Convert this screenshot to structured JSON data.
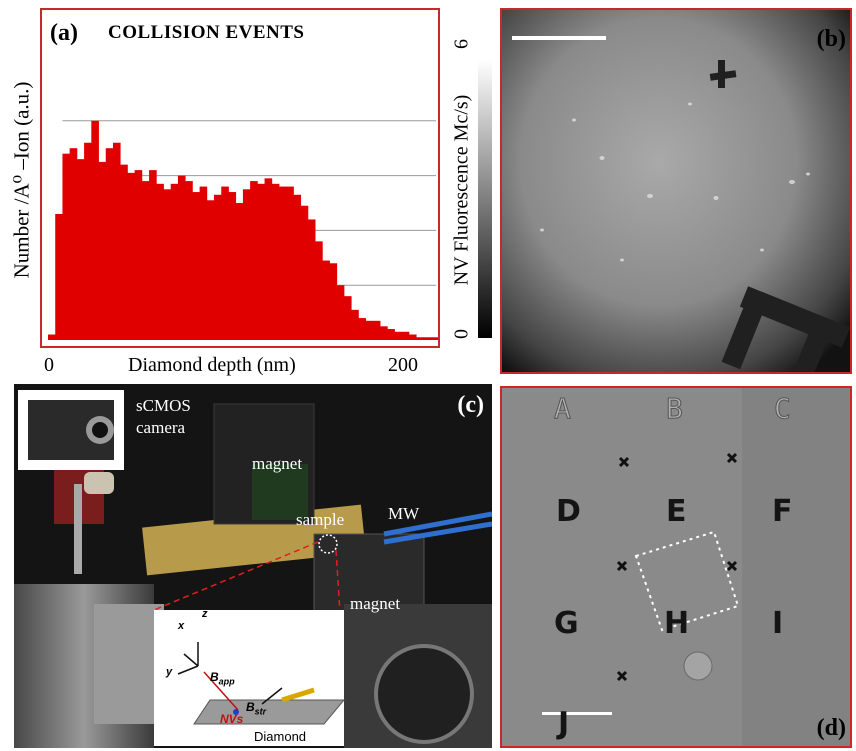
{
  "panel_a": {
    "label": "(a)",
    "title": "COLLISION EVENTS",
    "ylabel": "Number /A⁰ –Ion (a.u.)",
    "xlabel": "Diamond depth (nm)",
    "colorbar_label": "NV Fluorescence Mc/s)",
    "colorbar_ticks": [
      "6",
      "0"
    ]
  },
  "panel_b": {
    "label": "(b)"
  },
  "panel_c": {
    "label": "(c)",
    "camera_label_1": "sCMOS",
    "camera_label_2": "camera",
    "magnet_top": "magnet",
    "sample": "sample",
    "mw": "MW",
    "magnet_bottom": "magnet",
    "inset": {
      "x": "x",
      "y": "y",
      "z": "z",
      "b_app": "B",
      "b_app_sub": "app",
      "b_str": "B",
      "b_str_sub": "str",
      "nvs": "NVs",
      "diamond": "Diamond"
    }
  },
  "panel_d": {
    "label": "(d)",
    "letters": [
      "A",
      "B",
      "C",
      "D",
      "E",
      "F",
      "G",
      "H",
      "I",
      "J"
    ]
  },
  "chart_data": {
    "type": "bar",
    "title": "COLLISION EVENTS",
    "xlabel": "Diamond depth (nm)",
    "ylabel": "Number /A⁰ –Ion (a.u.)",
    "xlim": [
      0,
      215
    ],
    "xticks": [
      "0",
      "200"
    ],
    "color": "#e00000",
    "bin_centers": [
      2,
      6,
      10,
      14,
      18,
      22,
      26,
      30,
      34,
      38,
      42,
      46,
      50,
      54,
      58,
      62,
      66,
      70,
      74,
      78,
      82,
      86,
      90,
      94,
      98,
      102,
      106,
      110,
      114,
      118,
      122,
      126,
      130,
      134,
      138,
      142,
      146,
      150,
      154,
      158,
      162,
      166,
      170,
      174,
      178,
      182,
      186,
      190,
      194,
      198,
      202,
      206,
      210,
      214
    ],
    "values": [
      0.02,
      0.46,
      0.68,
      0.7,
      0.66,
      0.72,
      0.8,
      0.65,
      0.7,
      0.72,
      0.64,
      0.61,
      0.62,
      0.58,
      0.62,
      0.57,
      0.55,
      0.57,
      0.6,
      0.58,
      0.54,
      0.56,
      0.51,
      0.53,
      0.56,
      0.54,
      0.5,
      0.55,
      0.58,
      0.57,
      0.59,
      0.57,
      0.56,
      0.56,
      0.53,
      0.49,
      0.44,
      0.36,
      0.29,
      0.28,
      0.2,
      0.16,
      0.11,
      0.08,
      0.07,
      0.07,
      0.05,
      0.04,
      0.03,
      0.03,
      0.02,
      0.01,
      0.01,
      0.01
    ],
    "gridlines": true
  },
  "colors": {
    "frame": "#c8282a",
    "bar": "#e00000"
  }
}
